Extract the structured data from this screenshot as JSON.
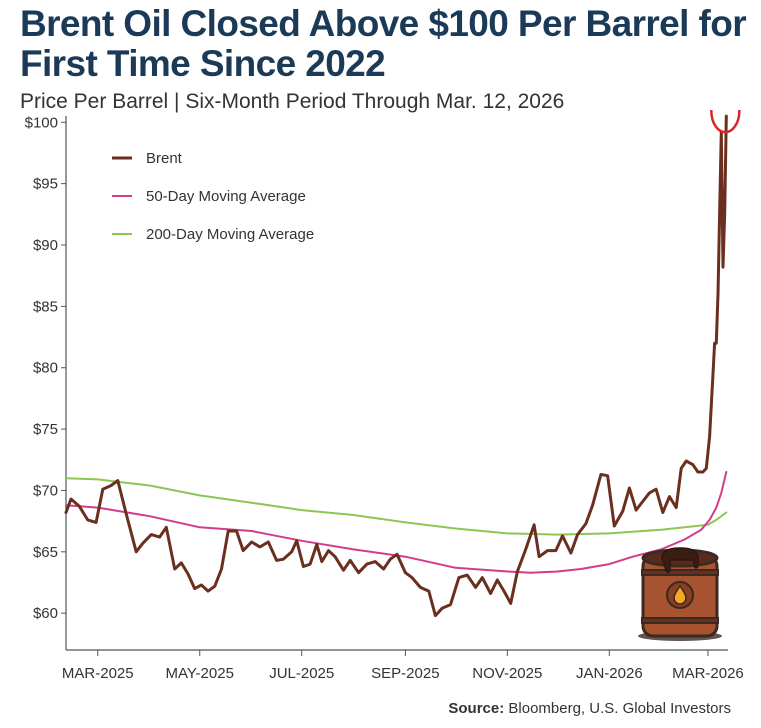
{
  "header": {
    "title": "Brent Oil Closed Above $100 Per Barrel for First Time Since 2022",
    "subtitle": "Price Per Barrel | Six-Month Period Through Mar. 12, 2026"
  },
  "footer": {
    "source_label": "Source:",
    "source_text": "Bloomberg, U.S. Global Investors"
  },
  "colors": {
    "title": "#1b3a57",
    "brent": "#6b2f1f",
    "ma50": "#d23c8c",
    "ma200": "#8cc751",
    "highlight": "#d9262a",
    "barrel": "#a8532f"
  },
  "illustration": "oil-barrel-icon",
  "chart_data": {
    "type": "line",
    "title": "Brent Oil Closed Above $100 Per Barrel for First Time Since 2022",
    "subtitle": "Price Per Barrel | Six-Month Period Through Mar. 12, 2026",
    "xlabel": "",
    "ylabel": "",
    "ylim": [
      57,
      101
    ],
    "xlim": [
      "2025-02-10",
      "2026-03-13"
    ],
    "yticks": [
      {
        "value": 60,
        "label": "$60"
      },
      {
        "value": 65,
        "label": "$65"
      },
      {
        "value": 70,
        "label": "$70"
      },
      {
        "value": 75,
        "label": "$75"
      },
      {
        "value": 80,
        "label": "$80"
      },
      {
        "value": 85,
        "label": "$85"
      },
      {
        "value": 90,
        "label": "$90"
      },
      {
        "value": 95,
        "label": "$95"
      },
      {
        "value": 100,
        "label": "$100"
      }
    ],
    "xticks": [
      {
        "date": "2025-03-01",
        "label": "MAR-2025"
      },
      {
        "date": "2025-05-01",
        "label": "MAY-2025"
      },
      {
        "date": "2025-07-01",
        "label": "JUL-2025"
      },
      {
        "date": "2025-09-01",
        "label": "SEP-2025"
      },
      {
        "date": "2025-11-01",
        "label": "NOV-2025"
      },
      {
        "date": "2026-01-01",
        "label": "JAN-2026"
      },
      {
        "date": "2026-03-01",
        "label": "MAR-2026"
      }
    ],
    "grid": false,
    "legend_position": "top-left",
    "annotation": "circle-highlight-latest-brent-price",
    "series": [
      {
        "name": "Brent",
        "key": "brent",
        "points": [
          [
            "2025-02-10",
            68.2
          ],
          [
            "2025-02-13",
            69.3
          ],
          [
            "2025-02-18",
            68.7
          ],
          [
            "2025-02-23",
            67.6
          ],
          [
            "2025-02-28",
            67.4
          ],
          [
            "2025-03-04",
            70.1
          ],
          [
            "2025-03-09",
            70.4
          ],
          [
            "2025-03-13",
            70.8
          ],
          [
            "2025-03-18",
            68.1
          ],
          [
            "2025-03-24",
            65.0
          ],
          [
            "2025-03-28",
            65.7
          ],
          [
            "2025-04-02",
            66.4
          ],
          [
            "2025-04-07",
            66.2
          ],
          [
            "2025-04-11",
            67.0
          ],
          [
            "2025-04-16",
            63.6
          ],
          [
            "2025-04-20",
            64.1
          ],
          [
            "2025-04-24",
            63.2
          ],
          [
            "2025-04-28",
            62.0
          ],
          [
            "2025-05-02",
            62.3
          ],
          [
            "2025-05-06",
            61.8
          ],
          [
            "2025-05-10",
            62.2
          ],
          [
            "2025-05-14",
            63.6
          ],
          [
            "2025-05-18",
            66.7
          ],
          [
            "2025-05-23",
            66.7
          ],
          [
            "2025-05-27",
            65.1
          ],
          [
            "2025-06-01",
            65.8
          ],
          [
            "2025-06-06",
            65.4
          ],
          [
            "2025-06-11",
            65.8
          ],
          [
            "2025-06-16",
            64.3
          ],
          [
            "2025-06-20",
            64.4
          ],
          [
            "2025-06-25",
            65.0
          ],
          [
            "2025-06-28",
            65.9
          ],
          [
            "2025-07-02",
            63.8
          ],
          [
            "2025-07-06",
            64.0
          ],
          [
            "2025-07-10",
            65.6
          ],
          [
            "2025-07-13",
            64.2
          ],
          [
            "2025-07-17",
            65.1
          ],
          [
            "2025-07-21",
            64.6
          ],
          [
            "2025-07-26",
            63.5
          ],
          [
            "2025-07-30",
            64.3
          ],
          [
            "2025-08-04",
            63.3
          ],
          [
            "2025-08-09",
            64.0
          ],
          [
            "2025-08-14",
            64.2
          ],
          [
            "2025-08-19",
            63.6
          ],
          [
            "2025-08-23",
            64.4
          ],
          [
            "2025-08-27",
            64.8
          ],
          [
            "2025-09-01",
            63.3
          ],
          [
            "2025-09-05",
            62.9
          ],
          [
            "2025-09-10",
            62.1
          ],
          [
            "2025-09-15",
            61.8
          ],
          [
            "2025-09-19",
            59.8
          ],
          [
            "2025-09-23",
            60.4
          ],
          [
            "2025-09-28",
            60.7
          ],
          [
            "2025-10-03",
            62.9
          ],
          [
            "2025-10-08",
            63.1
          ],
          [
            "2025-10-13",
            62.1
          ],
          [
            "2025-10-17",
            62.9
          ],
          [
            "2025-10-22",
            61.6
          ],
          [
            "2025-10-26",
            62.7
          ],
          [
            "2025-10-30",
            61.8
          ],
          [
            "2025-11-03",
            60.8
          ],
          [
            "2025-11-07",
            63.4
          ],
          [
            "2025-11-12",
            65.2
          ],
          [
            "2025-11-17",
            67.2
          ],
          [
            "2025-11-20",
            64.6
          ],
          [
            "2025-11-25",
            65.1
          ],
          [
            "2025-11-30",
            65.1
          ],
          [
            "2025-12-04",
            66.3
          ],
          [
            "2025-12-09",
            64.9
          ],
          [
            "2025-12-13",
            66.4
          ],
          [
            "2025-12-18",
            67.3
          ],
          [
            "2025-12-22",
            68.8
          ],
          [
            "2025-12-27",
            71.3
          ],
          [
            "2025-12-31",
            71.2
          ],
          [
            "2026-01-04",
            67.1
          ],
          [
            "2026-01-09",
            68.3
          ],
          [
            "2026-01-13",
            70.2
          ],
          [
            "2026-01-17",
            68.4
          ],
          [
            "2026-01-21",
            69.1
          ],
          [
            "2026-01-25",
            69.8
          ],
          [
            "2026-01-29",
            70.1
          ],
          [
            "2026-02-02",
            68.2
          ],
          [
            "2026-02-06",
            69.5
          ],
          [
            "2026-02-10",
            68.6
          ],
          [
            "2026-02-13",
            71.8
          ],
          [
            "2026-02-16",
            72.4
          ],
          [
            "2026-02-20",
            72.1
          ],
          [
            "2026-02-23",
            71.5
          ],
          [
            "2026-02-26",
            71.5
          ],
          [
            "2026-02-28",
            71.8
          ],
          [
            "2026-03-02",
            74.4
          ],
          [
            "2026-03-04",
            79.5
          ],
          [
            "2026-03-05",
            82.0
          ],
          [
            "2026-03-06",
            82.0
          ],
          [
            "2026-03-07",
            86.0
          ],
          [
            "2026-03-08",
            92.5
          ],
          [
            "2026-03-09",
            99.2
          ],
          [
            "2026-03-10",
            88.2
          ],
          [
            "2026-03-11",
            92.6
          ],
          [
            "2026-03-12",
            100.5
          ]
        ]
      },
      {
        "name": "50-Day Moving Average",
        "key": "ma50",
        "points": [
          [
            "2025-02-10",
            68.8
          ],
          [
            "2025-03-01",
            68.6
          ],
          [
            "2025-04-01",
            67.9
          ],
          [
            "2025-05-01",
            67.0
          ],
          [
            "2025-06-01",
            66.7
          ],
          [
            "2025-07-01",
            65.9
          ],
          [
            "2025-08-01",
            65.2
          ],
          [
            "2025-09-01",
            64.6
          ],
          [
            "2025-10-01",
            63.7
          ],
          [
            "2025-11-01",
            63.4
          ],
          [
            "2025-11-15",
            63.3
          ],
          [
            "2025-12-01",
            63.4
          ],
          [
            "2025-12-15",
            63.6
          ],
          [
            "2026-01-01",
            64.0
          ],
          [
            "2026-01-15",
            64.6
          ],
          [
            "2026-02-01",
            65.2
          ],
          [
            "2026-02-15",
            66.0
          ],
          [
            "2026-02-25",
            66.8
          ],
          [
            "2026-03-02",
            67.6
          ],
          [
            "2026-03-06",
            68.6
          ],
          [
            "2026-03-09",
            69.8
          ],
          [
            "2026-03-12",
            71.5
          ]
        ]
      },
      {
        "name": "200-Day Moving Average",
        "key": "ma200",
        "points": [
          [
            "2025-02-10",
            71.0
          ],
          [
            "2025-03-01",
            70.9
          ],
          [
            "2025-04-01",
            70.4
          ],
          [
            "2025-05-01",
            69.6
          ],
          [
            "2025-06-01",
            69.0
          ],
          [
            "2025-07-01",
            68.4
          ],
          [
            "2025-08-01",
            68.0
          ],
          [
            "2025-09-01",
            67.4
          ],
          [
            "2025-10-01",
            66.9
          ],
          [
            "2025-11-01",
            66.5
          ],
          [
            "2025-12-01",
            66.4
          ],
          [
            "2026-01-01",
            66.5
          ],
          [
            "2026-02-01",
            66.8
          ],
          [
            "2026-03-01",
            67.2
          ],
          [
            "2026-03-06",
            67.6
          ],
          [
            "2026-03-12",
            68.2
          ]
        ]
      }
    ]
  }
}
